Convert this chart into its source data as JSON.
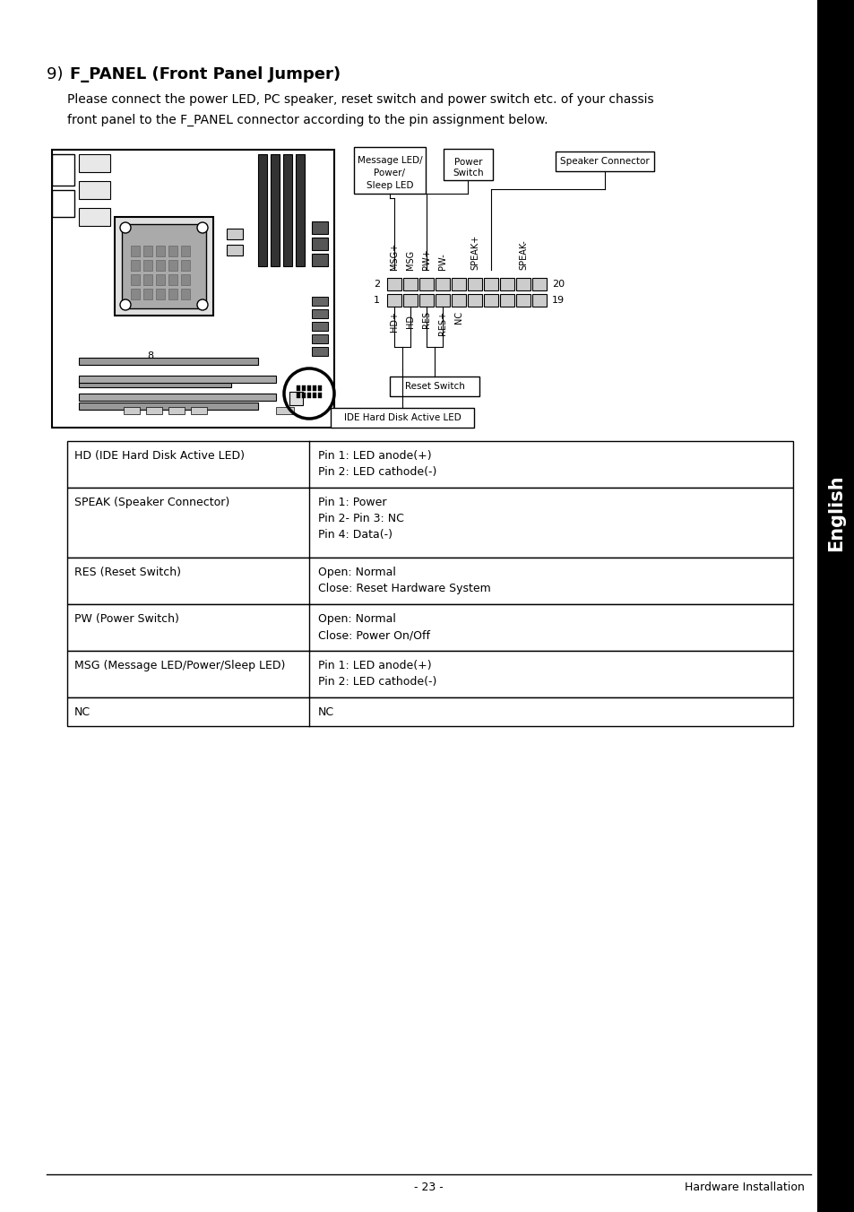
{
  "title": "9)  F_PANEL (Front Panel Jumper)",
  "body_line1": "Please connect the power LED, PC speaker, reset switch and power switch etc. of your chassis",
  "body_line2": "front panel to the F_PANEL connector according to the pin assignment below.",
  "table_data": [
    [
      "HD (IDE Hard Disk Active LED)",
      "Pin 1: LED anode(+)\nPin 2: LED cathode(-)"
    ],
    [
      "SPEAK (Speaker Connector)",
      "Pin 1: Power\nPin 2- Pin 3: NC\nPin 4: Data(-)"
    ],
    [
      "RES (Reset Switch)",
      "Open: Normal\nClose: Reset Hardware System"
    ],
    [
      "PW (Power Switch)",
      "Open: Normal\nClose: Power On/Off"
    ],
    [
      "MSG (Message LED/Power/Sleep LED)",
      "Pin 1: LED anode(+)\nPin 2: LED cathode(-)"
    ],
    [
      "NC",
      "NC"
    ]
  ],
  "footer_left": "- 23 -",
  "footer_right": "Hardware Installation",
  "bg_color": "#ffffff",
  "text_color": "#000000",
  "sidebar_text": "English",
  "conn_labels_top": [
    "MSG+",
    "MSG",
    "PW+",
    "PW-",
    "SPEAK+",
    "SPEAK-"
  ],
  "conn_row_nums_left": [
    "2",
    "1"
  ],
  "conn_row_nums_right": [
    "20",
    "19"
  ],
  "conn_labels_bottom": [
    "HD+",
    "HD-",
    "RES",
    "RES+",
    "NC"
  ],
  "label_speaker": "Speaker Connector",
  "label_msg": "Message LED/\nPower/\nSleep LED",
  "label_power": "Power\nSwitch",
  "label_reset": "Reset Switch",
  "label_ide": "IDE Hard Disk Active LED"
}
